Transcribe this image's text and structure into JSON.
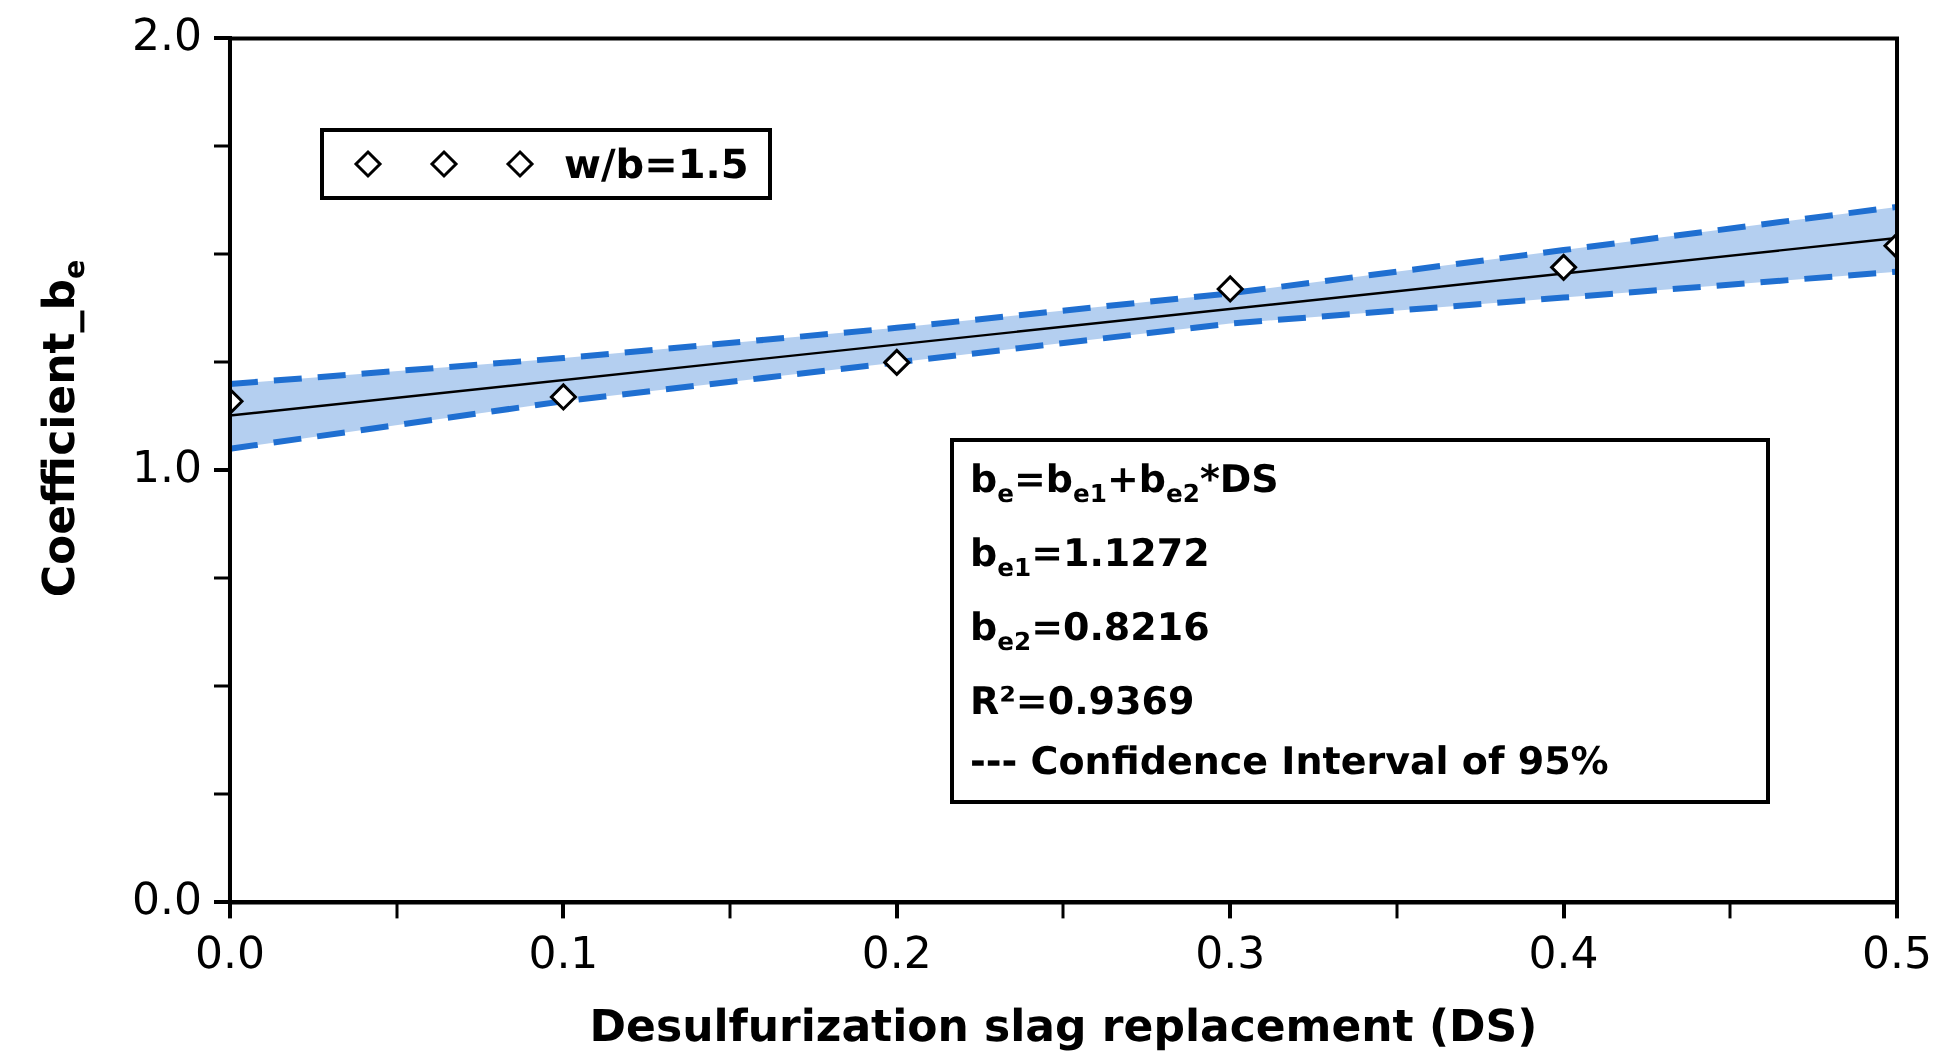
{
  "chart_data": {
    "type": "scatter",
    "xlabel": "Desulfurization slag replacement (DS)",
    "ylabel": "Coefficient_b$_{e}$",
    "xlim": [
      0,
      0.5
    ],
    "ylim": [
      0,
      2
    ],
    "xticks": [
      {
        "value": 0,
        "label": "0.0"
      },
      {
        "value": 0.05,
        "label": null
      },
      {
        "value": 0.1,
        "label": "0.1"
      },
      {
        "value": 0.15,
        "label": null
      },
      {
        "value": 0.2,
        "label": "0.2"
      },
      {
        "value": 0.25,
        "label": null
      },
      {
        "value": 0.3,
        "label": "0.3"
      },
      {
        "value": 0.35,
        "label": null
      },
      {
        "value": 0.4,
        "label": "0.4"
      },
      {
        "value": 0.45,
        "label": null
      },
      {
        "value": 0.5,
        "label": "0.5"
      }
    ],
    "yticks": [
      {
        "value": 0,
        "label": "0.0"
      },
      {
        "value": 0.25,
        "label": null
      },
      {
        "value": 0.5,
        "label": null
      },
      {
        "value": 0.75,
        "label": null
      },
      {
        "value": 1,
        "label": "1.0"
      },
      {
        "value": 1.25,
        "label": null
      },
      {
        "value": 1.5,
        "label": null
      },
      {
        "value": 1.75,
        "label": null
      },
      {
        "value": 2,
        "label": "2.0"
      }
    ],
    "legend": "top left",
    "marker": "diamond",
    "series": [
      {
        "name": "w/b=1.5",
        "color": "#000000",
        "x": [
          0,
          0.1,
          0.2,
          0.3,
          0.4,
          0.5
        ],
        "values": [
          1.16,
          1.17,
          1.25,
          1.42,
          1.47,
          1.52
        ]
      },
      {
        "type": "line",
        "color": "#1f6fd1",
        "marker": "none",
        "line_style": "dashed",
        "x": [
          0,
          0.1,
          0.2,
          0.3,
          0.4,
          0.5
        ],
        "values": [
          1.05,
          1.16,
          1.25,
          1.34,
          1.4,
          1.46
        ]
      },
      {
        "type": "area",
        "color": "#1f6fd1",
        "marker": "none",
        "line_style": "dashed",
        "x": [
          0,
          0.1,
          0.2,
          0.3,
          0.4,
          0.5
        ],
        "values": [
          1.2,
          1.26,
          1.33,
          1.41,
          1.51,
          1.61
        ]
      },
      {
        "type": "line",
        "color": "#000000",
        "marker": "none",
        "line_style": "solid",
        "x": [
          0,
          0.5
        ],
        "values": [
          1.127,
          1.538
        ]
      }
    ],
    "annotations": [
      "b$_{e}$=b$_{e1}$+b$_{e2}$*DS",
      "b$_{e1}$=1.1272",
      "b$_{e2}$=0.8216",
      "R²=0.9369",
      "--- Confidence Interval of 95%"
    ]
  }
}
